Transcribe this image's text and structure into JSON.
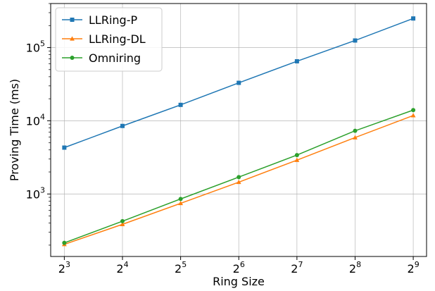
{
  "chart_data": {
    "type": "line",
    "xlabel": "Ring Size",
    "ylabel": "Proving Time (ms)",
    "x_scale": "log2",
    "y_scale": "log10",
    "x_ticks": [
      {
        "value": 8,
        "base": "2",
        "exp": "3"
      },
      {
        "value": 16,
        "base": "2",
        "exp": "4"
      },
      {
        "value": 32,
        "base": "2",
        "exp": "5"
      },
      {
        "value": 64,
        "base": "2",
        "exp": "6"
      },
      {
        "value": 128,
        "base": "2",
        "exp": "7"
      },
      {
        "value": 256,
        "base": "2",
        "exp": "8"
      },
      {
        "value": 512,
        "base": "2",
        "exp": "9"
      }
    ],
    "y_ticks": [
      {
        "value": 1000,
        "base": "10",
        "exp": "3"
      },
      {
        "value": 10000,
        "base": "10",
        "exp": "4"
      },
      {
        "value": 100000,
        "base": "10",
        "exp": "5"
      }
    ],
    "xlim": [
      6.8,
      600
    ],
    "ylim": [
      140,
      400000
    ],
    "grid": true,
    "legend_position": "top-left",
    "x": [
      8,
      16,
      32,
      64,
      128,
      256,
      512
    ],
    "series": [
      {
        "name": "LLRing-P",
        "color": "#1f77b4",
        "marker": "square",
        "values": [
          4300,
          8500,
          16500,
          33000,
          65000,
          125000,
          250000
        ]
      },
      {
        "name": "LLRing-DL",
        "color": "#ff7f0e",
        "marker": "triangle",
        "values": [
          205,
          385,
          745,
          1450,
          2900,
          5900,
          11800
        ]
      },
      {
        "name": "Omniring",
        "color": "#2ca02c",
        "marker": "circle",
        "values": [
          215,
          425,
          855,
          1700,
          3400,
          7300,
          14000
        ]
      }
    ]
  }
}
